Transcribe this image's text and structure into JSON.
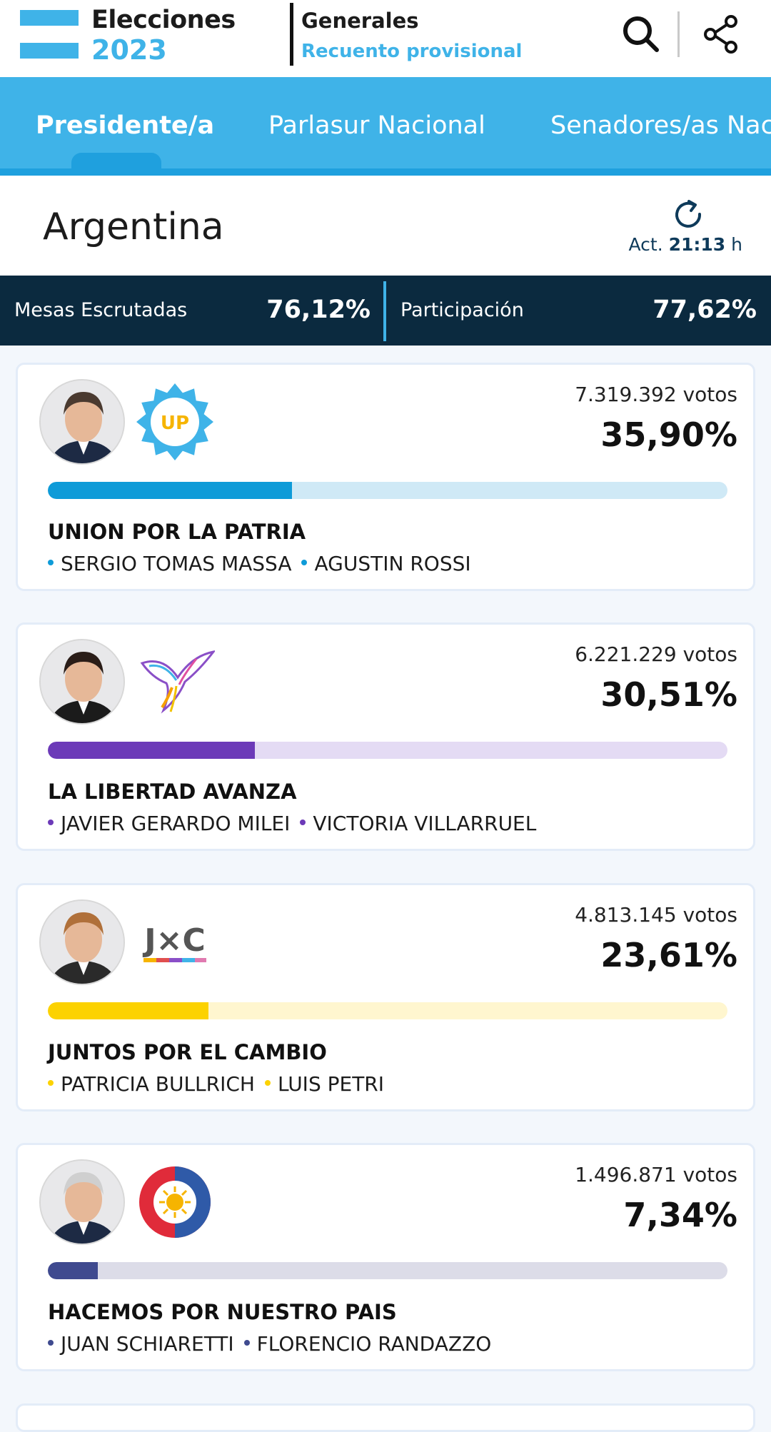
{
  "header": {
    "brand_line1": "Elecciones",
    "brand_line2": "2023",
    "section": "Generales",
    "subsection": "Recuento provisional",
    "colors": {
      "accent": "#3fb3e8",
      "dark": "#1b1b1b"
    }
  },
  "tabs": [
    {
      "label": "Presidente/a",
      "active": true
    },
    {
      "label": "Parlasur Nacional",
      "active": false
    },
    {
      "label": "Senadores/as Naci",
      "active": false
    }
  ],
  "region": {
    "name": "Argentina",
    "update_prefix": "Act.",
    "update_time": "21:13",
    "update_suffix": "h"
  },
  "stats": {
    "mesas_label": "Mesas Escrutadas",
    "mesas_value": "76,12%",
    "participacion_label": "Participación",
    "participacion_value": "77,62%"
  },
  "results": [
    {
      "votes": "7.319.392  votos",
      "percent_label": "35,90%",
      "percent": 35.9,
      "party": "UNION POR LA PATRIA",
      "candidates": [
        "SERGIO TOMAS MASSA",
        "AGUSTIN ROSSI"
      ],
      "logo_icon": "union-por-la-patria-logo-icon",
      "logo_text": "UP",
      "avatar_icon": "candidate-photo-icon",
      "color": "#0e9bd8",
      "track_color": "#cfe9f6"
    },
    {
      "votes": "6.221.229  votos",
      "percent_label": "30,51%",
      "percent": 30.51,
      "party": "LA LIBERTAD AVANZA",
      "candidates": [
        "JAVIER GERARDO MILEI",
        "VICTORIA VILLARRUEL"
      ],
      "logo_icon": "libertad-avanza-eagle-logo-icon",
      "avatar_icon": "candidate-photo-icon",
      "color": "#6c3ab8",
      "track_color": "#e4dbf4"
    },
    {
      "votes": "4.813.145  votos",
      "percent_label": "23,61%",
      "percent": 23.61,
      "party": "JUNTOS POR EL CAMBIO",
      "candidates": [
        "PATRICIA BULLRICH",
        "LUIS PETRI"
      ],
      "logo_icon": "juntos-por-el-cambio-logo-icon",
      "logo_text": "J×C",
      "avatar_icon": "candidate-photo-icon",
      "color": "#fcd200",
      "track_color": "#fff6cf"
    },
    {
      "votes": "1.496.871  votos",
      "percent_label": "7,34%",
      "percent": 7.34,
      "party": "HACEMOS POR NUESTRO PAIS",
      "candidates": [
        "JUAN SCHIARETTI",
        "FLORENCIO RANDAZZO"
      ],
      "logo_icon": "hacemos-sun-logo-icon",
      "avatar_icon": "candidate-photo-icon",
      "color": "#3f4a8f",
      "track_color": "#dcdce8"
    }
  ]
}
